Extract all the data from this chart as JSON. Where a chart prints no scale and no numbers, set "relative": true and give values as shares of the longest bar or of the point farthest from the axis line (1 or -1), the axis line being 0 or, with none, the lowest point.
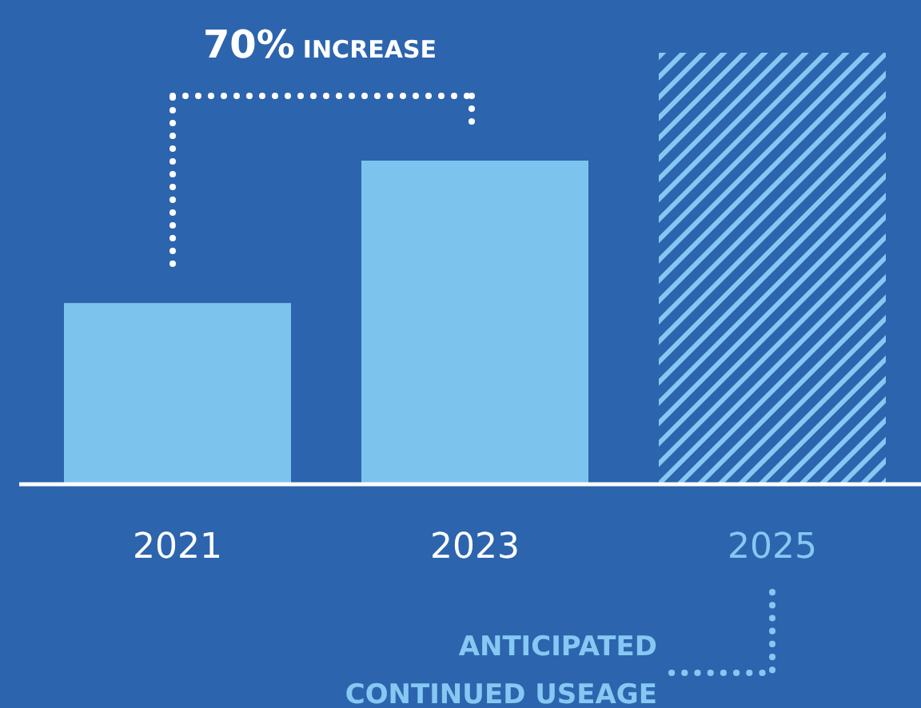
{
  "chart_data": {
    "type": "bar",
    "relative": true,
    "categories": [
      "2021",
      "2023",
      "2025"
    ],
    "series": [
      {
        "color": "#7cc4ee",
        "values": [
          0.42,
          0.75,
          null
        ]
      },
      {
        "color": "#86c8f2",
        "values": [
          null,
          null,
          1
        ]
      }
    ],
    "annotations": [
      "70% INCREASE",
      "ANTICIPATED CONTINUED USEAGE"
    ]
  }
}
